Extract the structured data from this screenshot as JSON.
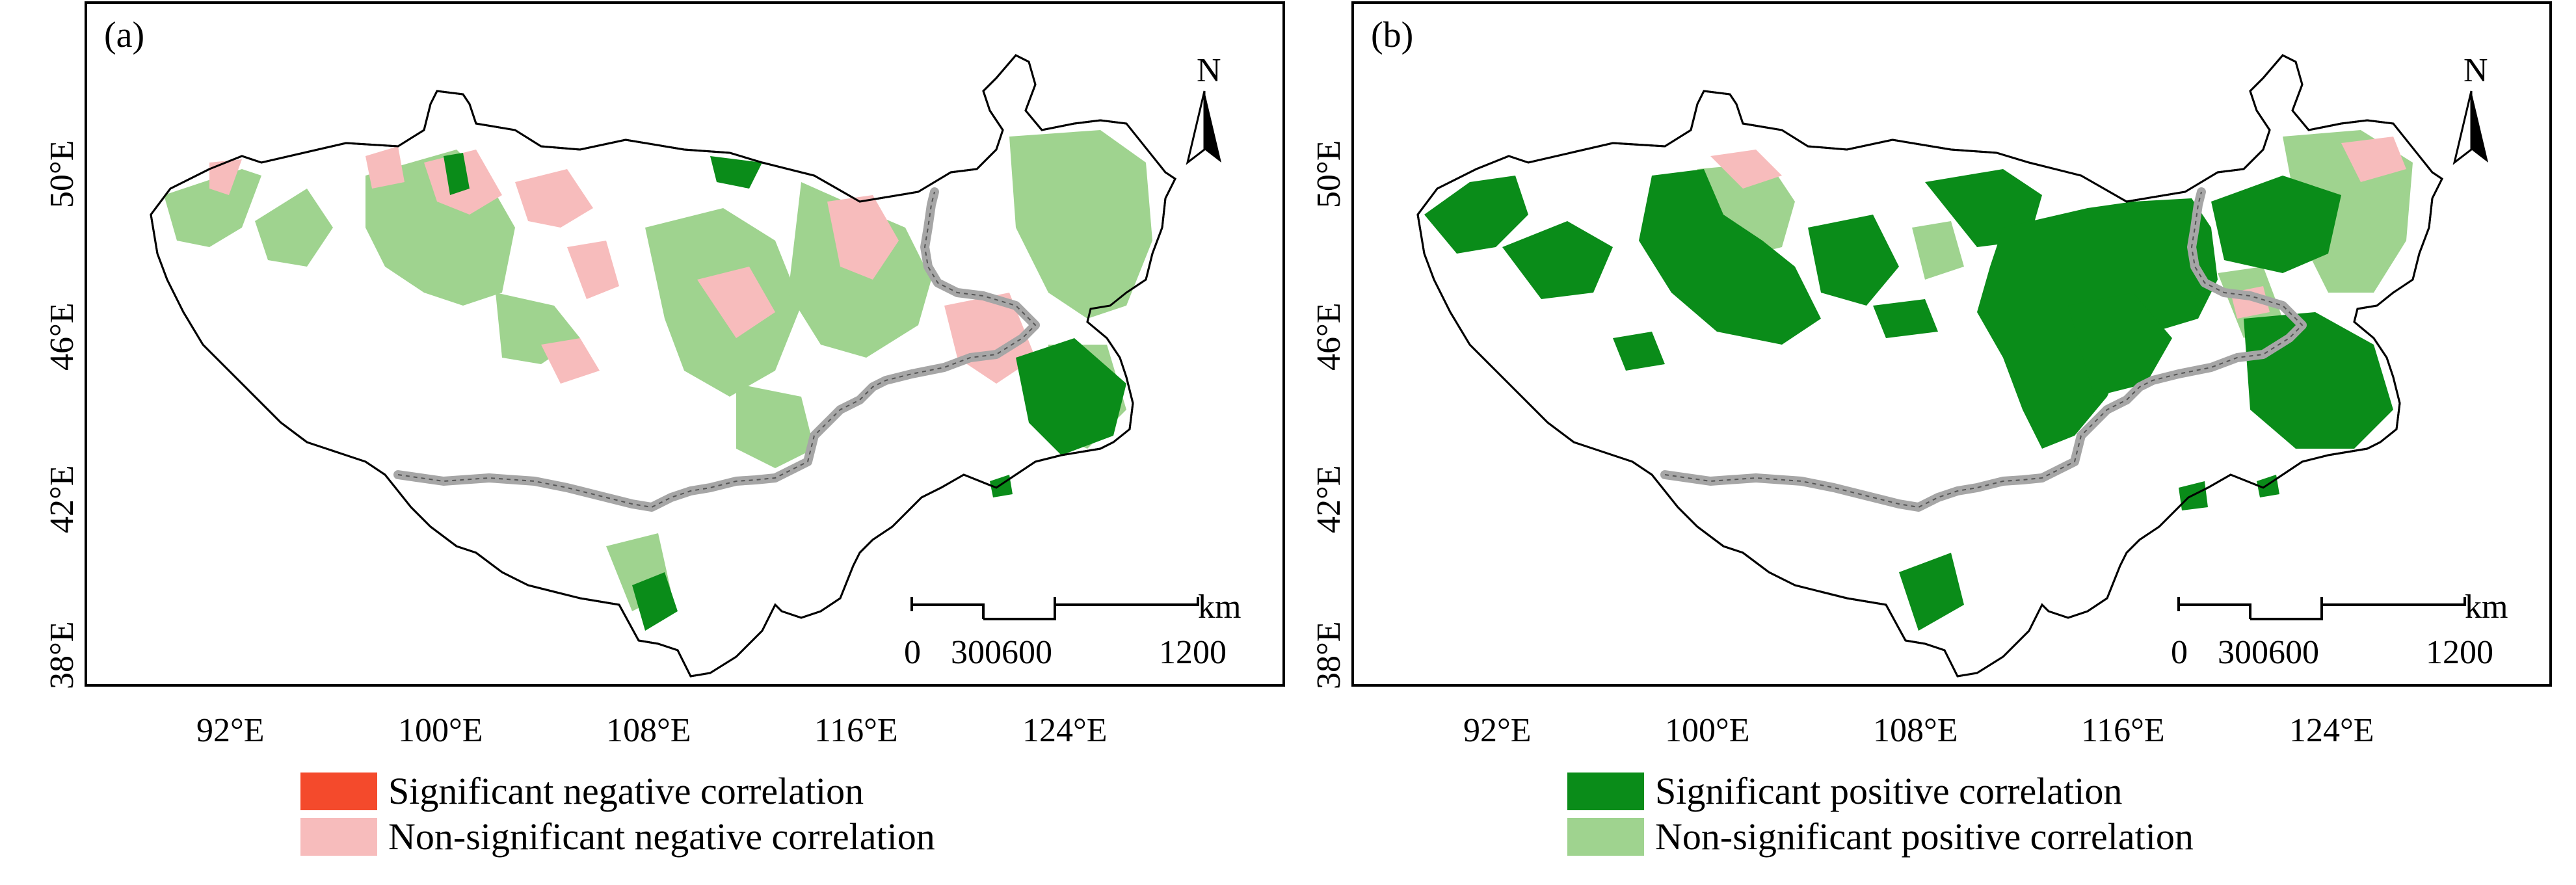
{
  "colors": {
    "significant_negative": "#f44a2c",
    "non_significant_negative": "#f7bcbc",
    "significant_positive": "#0a8c19",
    "non_significant_positive": "#9fd38f",
    "boundary": "#000000",
    "border_line": "#a6a6a6",
    "frame": "#000000"
  },
  "axes": {
    "x_ticks": [
      "92°E",
      "100°E",
      "108°E",
      "116°E",
      "124°E"
    ],
    "y_ticks": [
      "50°E",
      "46°E",
      "42°E",
      "38°E"
    ]
  },
  "scale_bar": {
    "unit": "km",
    "labels": [
      "0",
      "300600",
      "1200"
    ]
  },
  "north_arrow": {
    "label": "N"
  },
  "panels": [
    {
      "label": "(a)",
      "legend": [
        {
          "text": "Significant negative correlation",
          "color_key": "significant_negative"
        },
        {
          "text": "Non-significant negative correlation",
          "color_key": "non_significant_negative"
        }
      ]
    },
    {
      "label": "(b)",
      "legend": [
        {
          "text": "Significant positive correlation",
          "color_key": "significant_positive"
        },
        {
          "text": "Non-significant positive correlation",
          "color_key": "non_significant_positive"
        }
      ]
    }
  ]
}
